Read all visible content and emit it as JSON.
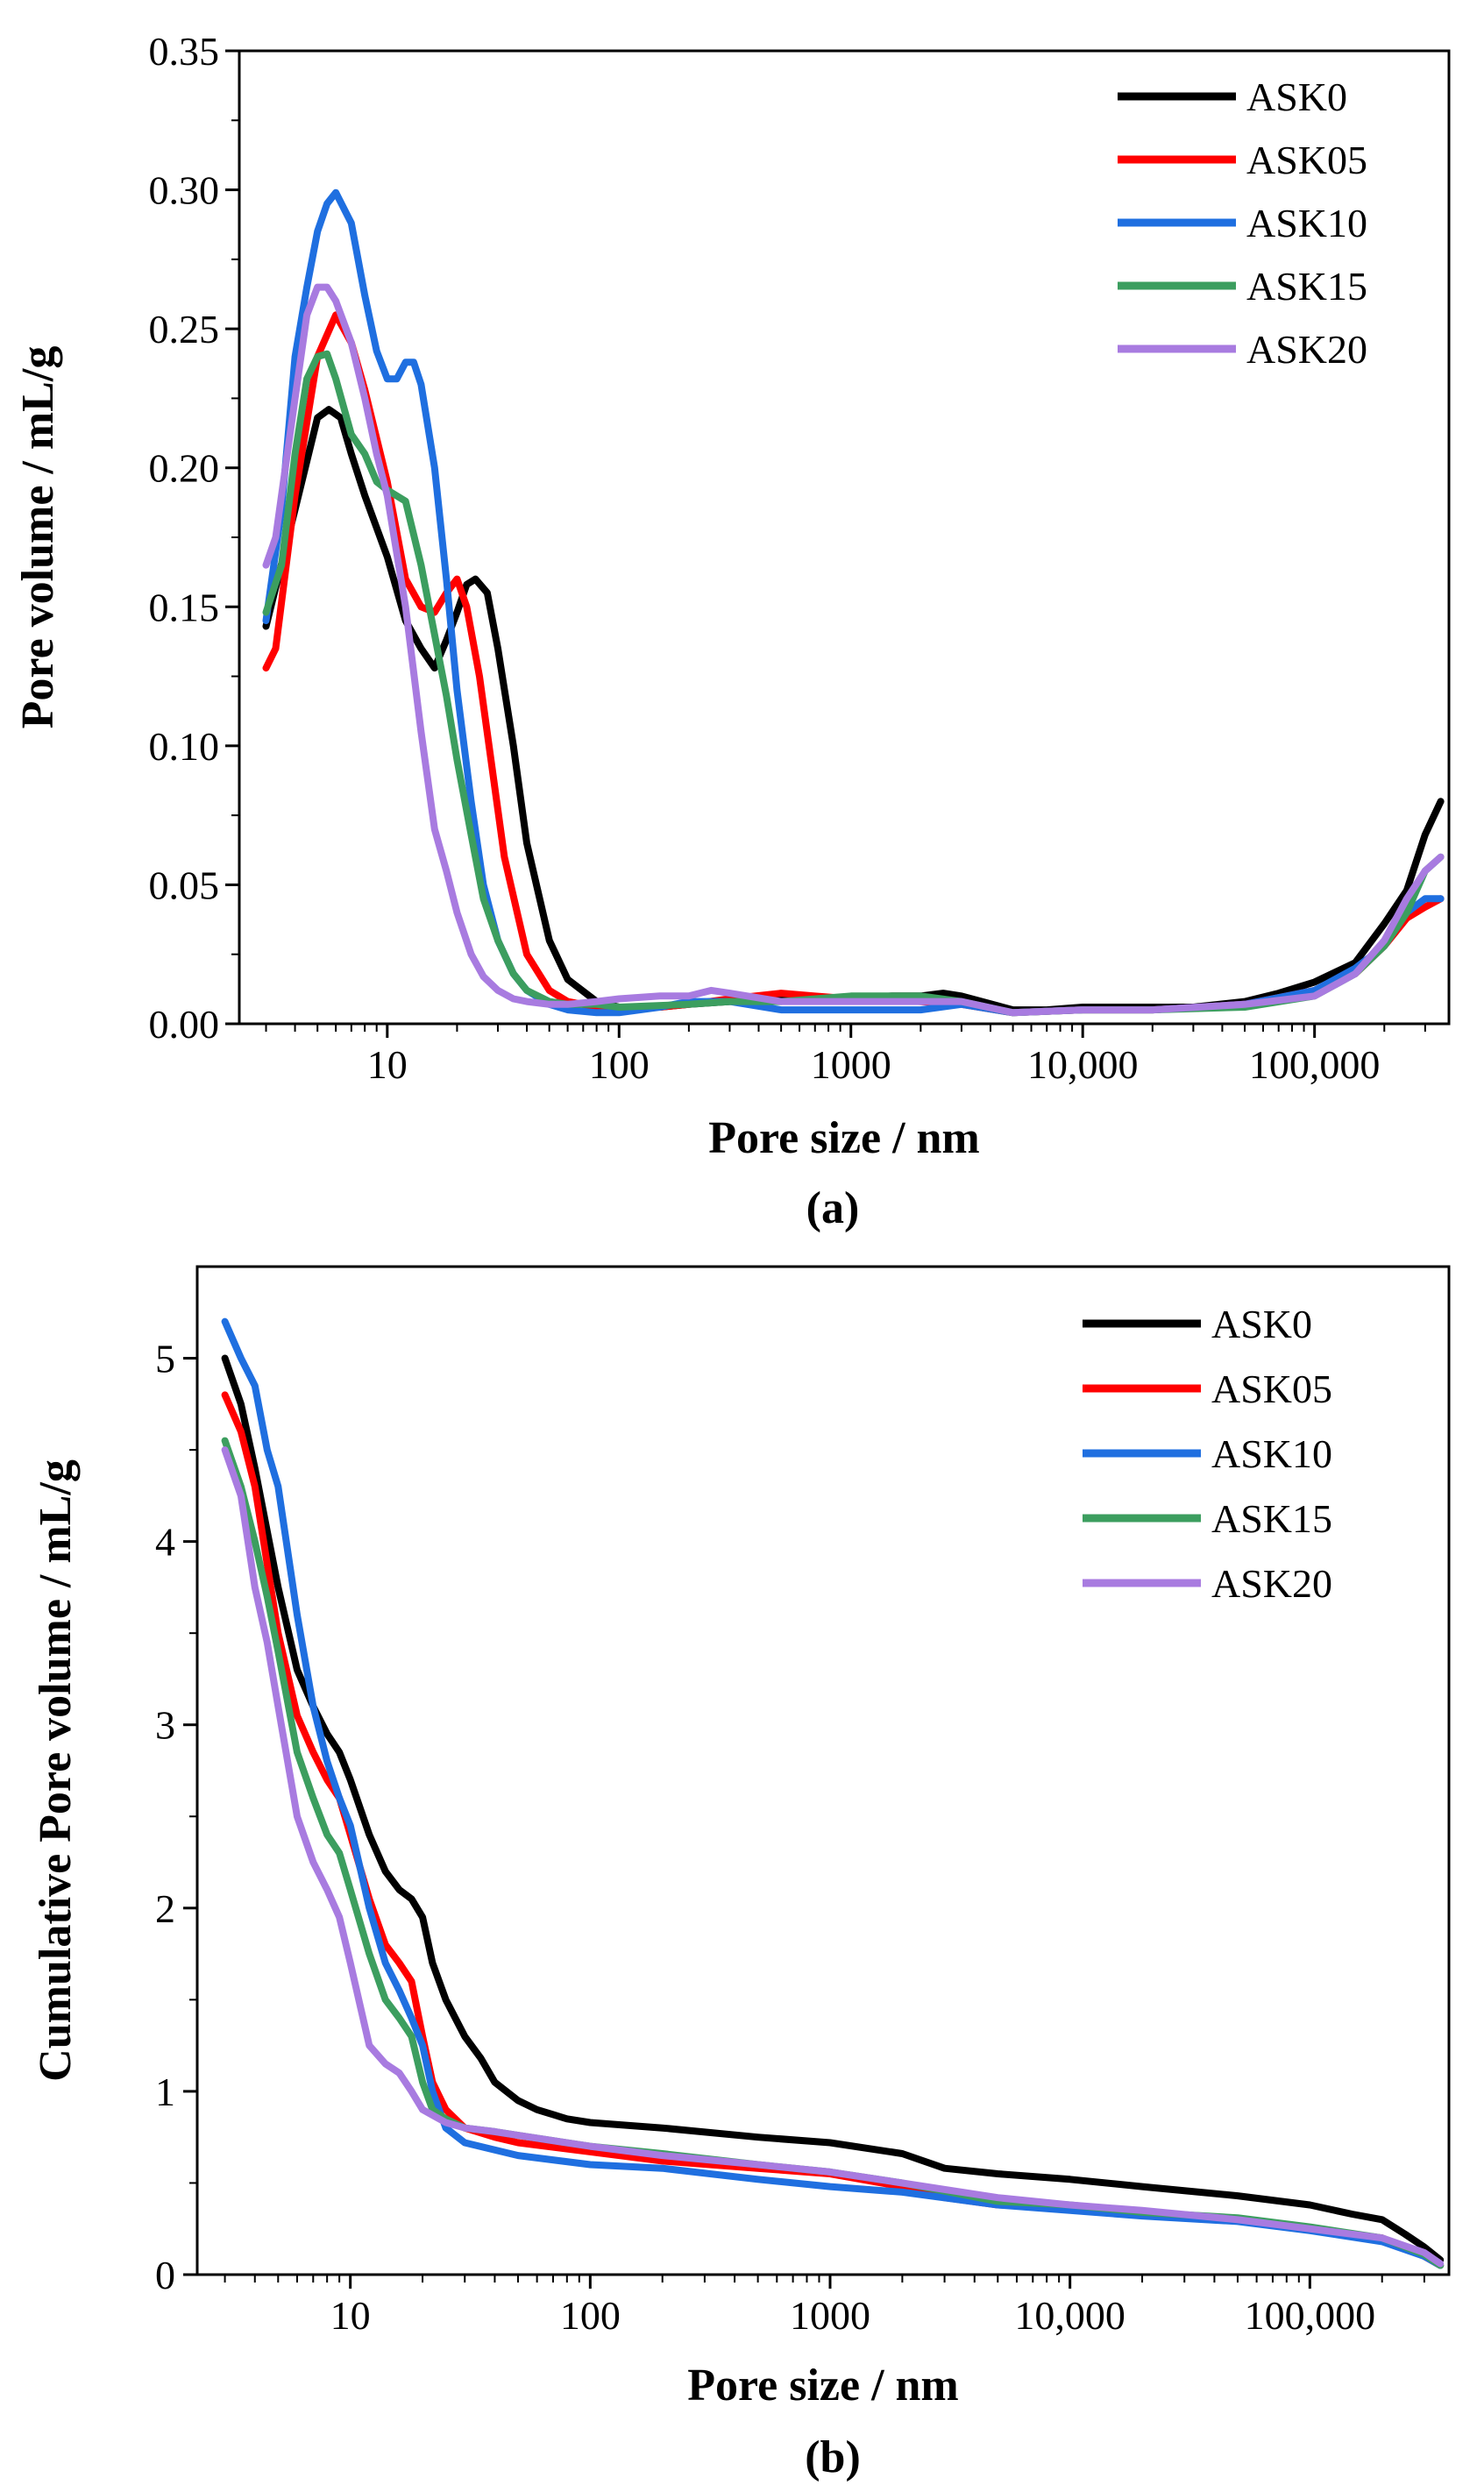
{
  "chart_data": [
    {
      "type": "line",
      "panel_label": "(a)",
      "xlabel": "Pore size / nm",
      "ylabel": "Pore volume / mL/g",
      "x_scale": "log",
      "xlim": [
        2.3,
        380000
      ],
      "ylim": [
        0,
        0.35
      ],
      "x_ticks": [
        {
          "value": 10,
          "label": "10"
        },
        {
          "value": 100,
          "label": "100"
        },
        {
          "value": 1000,
          "label": "1000"
        },
        {
          "value": 10000,
          "label": "10,000"
        },
        {
          "value": 100000,
          "label": "100,000"
        }
      ],
      "y_ticks": [
        {
          "value": 0,
          "label": "0.00"
        },
        {
          "value": 0.05,
          "label": "0.05"
        },
        {
          "value": 0.1,
          "label": "0.10"
        },
        {
          "value": 0.15,
          "label": "0.15"
        },
        {
          "value": 0.2,
          "label": "0.20"
        },
        {
          "value": 0.25,
          "label": "0.25"
        },
        {
          "value": 0.3,
          "label": "0.30"
        },
        {
          "value": 0.35,
          "label": "0.35"
        }
      ],
      "legend_position": "top-right",
      "grid": false,
      "series": [
        {
          "name": "ASK0",
          "color": "#000000",
          "x": [
            3.0,
            4.0,
            5.0,
            5.6,
            6.3,
            7.0,
            8.0,
            10,
            12,
            14,
            16,
            18,
            20,
            22,
            24,
            27,
            30,
            35,
            40,
            50,
            60,
            80,
            100,
            150,
            200,
            300,
            500,
            700,
            1000,
            1500,
            2000,
            2500,
            3000,
            5000,
            7000,
            10000,
            15000,
            20000,
            30000,
            50000,
            70000,
            100000,
            150000,
            200000,
            250000,
            300000,
            350000
          ],
          "y": [
            0.143,
            0.185,
            0.218,
            0.221,
            0.218,
            0.205,
            0.19,
            0.168,
            0.145,
            0.135,
            0.128,
            0.138,
            0.148,
            0.158,
            0.16,
            0.155,
            0.135,
            0.1,
            0.065,
            0.03,
            0.016,
            0.008,
            0.006,
            0.006,
            0.007,
            0.008,
            0.009,
            0.009,
            0.009,
            0.01,
            0.01,
            0.011,
            0.01,
            0.005,
            0.005,
            0.006,
            0.006,
            0.006,
            0.006,
            0.008,
            0.011,
            0.015,
            0.022,
            0.036,
            0.048,
            0.068,
            0.08
          ]
        },
        {
          "name": "ASK05",
          "color": "#ff0000",
          "x": [
            3.0,
            3.3,
            4.0,
            5.0,
            6.0,
            7.0,
            8.0,
            10,
            12,
            14,
            16,
            18,
            20,
            22,
            25,
            28,
            32,
            40,
            50,
            60,
            80,
            100,
            150,
            200,
            300,
            500,
            700,
            1000,
            2000,
            3000,
            5000,
            10000,
            20000,
            50000,
            100000,
            150000,
            200000,
            250000,
            300000,
            350000
          ],
          "y": [
            0.128,
            0.135,
            0.19,
            0.24,
            0.255,
            0.245,
            0.228,
            0.195,
            0.16,
            0.15,
            0.148,
            0.155,
            0.16,
            0.15,
            0.125,
            0.095,
            0.06,
            0.025,
            0.012,
            0.008,
            0.006,
            0.006,
            0.006,
            0.007,
            0.009,
            0.011,
            0.01,
            0.009,
            0.008,
            0.007,
            0.004,
            0.005,
            0.005,
            0.007,
            0.012,
            0.018,
            0.028,
            0.038,
            0.042,
            0.045
          ]
        },
        {
          "name": "ASK10",
          "color": "#1f6fe0",
          "x": [
            3.0,
            3.5,
            4.0,
            4.5,
            5.0,
            5.5,
            6.0,
            7.0,
            8.0,
            9.0,
            10,
            11,
            12,
            13,
            14,
            16,
            18,
            20,
            23,
            26,
            30,
            35,
            40,
            50,
            60,
            80,
            100,
            150,
            200,
            300,
            500,
            1000,
            2000,
            3000,
            5000,
            10000,
            20000,
            50000,
            100000,
            150000,
            200000,
            250000,
            300000,
            350000
          ],
          "y": [
            0.145,
            0.185,
            0.24,
            0.265,
            0.285,
            0.295,
            0.299,
            0.288,
            0.262,
            0.242,
            0.232,
            0.232,
            0.238,
            0.238,
            0.23,
            0.2,
            0.16,
            0.12,
            0.08,
            0.05,
            0.03,
            0.018,
            0.012,
            0.007,
            0.005,
            0.004,
            0.004,
            0.006,
            0.008,
            0.008,
            0.005,
            0.005,
            0.005,
            0.007,
            0.004,
            0.005,
            0.005,
            0.007,
            0.012,
            0.02,
            0.028,
            0.04,
            0.045,
            0.045
          ]
        },
        {
          "name": "ASK15",
          "color": "#3c9e5f",
          "x": [
            3.0,
            3.5,
            4.0,
            4.5,
            5.0,
            5.5,
            6.0,
            7.0,
            8.0,
            9.0,
            10,
            12,
            14,
            16,
            18,
            20,
            23,
            26,
            30,
            35,
            40,
            50,
            60,
            80,
            100,
            200,
            300,
            500,
            1000,
            2000,
            3000,
            5000,
            10000,
            20000,
            50000,
            100000,
            150000,
            200000,
            250000,
            300000,
            350000
          ],
          "y": [
            0.148,
            0.165,
            0.205,
            0.232,
            0.24,
            0.241,
            0.232,
            0.212,
            0.205,
            0.195,
            0.192,
            0.188,
            0.165,
            0.14,
            0.118,
            0.095,
            0.068,
            0.045,
            0.03,
            0.018,
            0.012,
            0.008,
            0.007,
            0.007,
            0.006,
            0.007,
            0.008,
            0.008,
            0.01,
            0.01,
            0.008,
            0.004,
            0.005,
            0.005,
            0.006,
            0.01,
            0.018,
            0.028,
            0.04,
            0.055,
            0.06
          ]
        },
        {
          "name": "ASK20",
          "color": "#a87be0",
          "x": [
            3.0,
            3.3,
            4.0,
            4.5,
            5.0,
            5.5,
            6.0,
            7.0,
            8.0,
            9.0,
            10,
            12,
            14,
            16,
            18,
            20,
            23,
            26,
            30,
            35,
            40,
            50,
            60,
            80,
            100,
            150,
            200,
            250,
            300,
            500,
            1000,
            2000,
            3000,
            5000,
            10000,
            20000,
            50000,
            100000,
            150000,
            200000,
            250000,
            300000,
            350000
          ],
          "y": [
            0.165,
            0.175,
            0.225,
            0.255,
            0.265,
            0.265,
            0.26,
            0.245,
            0.225,
            0.205,
            0.19,
            0.15,
            0.105,
            0.07,
            0.055,
            0.04,
            0.025,
            0.017,
            0.012,
            0.009,
            0.008,
            0.007,
            0.007,
            0.008,
            0.009,
            0.01,
            0.01,
            0.012,
            0.011,
            0.008,
            0.008,
            0.008,
            0.008,
            0.004,
            0.005,
            0.005,
            0.007,
            0.01,
            0.018,
            0.03,
            0.045,
            0.055,
            0.06
          ]
        }
      ]
    },
    {
      "type": "line",
      "panel_label": "(b)",
      "xlabel": "Pore size / nm",
      "ylabel": "Cumulative Pore volume / mL/g",
      "x_scale": "log",
      "xlim": [
        2.3,
        380000
      ],
      "ylim": [
        0,
        5.5
      ],
      "x_ticks": [
        {
          "value": 10,
          "label": "10"
        },
        {
          "value": 100,
          "label": "100"
        },
        {
          "value": 1000,
          "label": "1000"
        },
        {
          "value": 10000,
          "label": "10,000"
        },
        {
          "value": 100000,
          "label": "100,000"
        }
      ],
      "y_ticks": [
        {
          "value": 0,
          "label": "0"
        },
        {
          "value": 1,
          "label": "1"
        },
        {
          "value": 2,
          "label": "2"
        },
        {
          "value": 3,
          "label": "3"
        },
        {
          "value": 4,
          "label": "4"
        },
        {
          "value": 5,
          "label": "5"
        }
      ],
      "legend_position": "top-right",
      "grid": false,
      "series": [
        {
          "name": "ASK0",
          "color": "#000000",
          "x": [
            3.0,
            3.5,
            4.0,
            5.0,
            6.0,
            7.0,
            8.0,
            9.0,
            10,
            12,
            14,
            16,
            18,
            20,
            22,
            25,
            30,
            35,
            40,
            50,
            60,
            80,
            100,
            200,
            500,
            1000,
            2000,
            3000,
            5000,
            10000,
            20000,
            50000,
            100000,
            150000,
            200000,
            250000,
            300000,
            350000
          ],
          "y": [
            5.0,
            4.75,
            4.4,
            3.75,
            3.3,
            3.1,
            2.95,
            2.85,
            2.7,
            2.4,
            2.2,
            2.1,
            2.05,
            1.95,
            1.7,
            1.5,
            1.3,
            1.18,
            1.05,
            0.95,
            0.9,
            0.85,
            0.83,
            0.8,
            0.75,
            0.72,
            0.66,
            0.58,
            0.55,
            0.52,
            0.48,
            0.43,
            0.38,
            0.33,
            0.3,
            0.22,
            0.15,
            0.08
          ]
        },
        {
          "name": "ASK05",
          "color": "#ff0000",
          "x": [
            3.0,
            3.5,
            4.0,
            5.0,
            6.0,
            7.0,
            8.0,
            9.0,
            10,
            12,
            14,
            16,
            18,
            20,
            22,
            25,
            30,
            40,
            50,
            100,
            200,
            500,
            1000,
            2000,
            3000,
            5000,
            10000,
            20000,
            50000,
            100000,
            200000,
            300000,
            350000
          ],
          "y": [
            4.8,
            4.6,
            4.3,
            3.5,
            3.05,
            2.85,
            2.7,
            2.6,
            2.4,
            2.05,
            1.8,
            1.7,
            1.6,
            1.3,
            1.05,
            0.9,
            0.8,
            0.75,
            0.72,
            0.67,
            0.62,
            0.58,
            0.55,
            0.48,
            0.42,
            0.38,
            0.37,
            0.33,
            0.3,
            0.25,
            0.2,
            0.1,
            0.05
          ]
        },
        {
          "name": "ASK10",
          "color": "#1f6fe0",
          "x": [
            3.0,
            3.5,
            4.0,
            4.5,
            5.0,
            6.0,
            7.0,
            8.0,
            9.0,
            10,
            12,
            14,
            16,
            18,
            20,
            22,
            25,
            30,
            40,
            50,
            100,
            200,
            500,
            1000,
            2000,
            5000,
            10000,
            20000,
            50000,
            100000,
            200000,
            300000,
            350000
          ],
          "y": [
            5.2,
            5.0,
            4.85,
            4.5,
            4.3,
            3.6,
            3.1,
            2.8,
            2.6,
            2.45,
            2.0,
            1.7,
            1.55,
            1.4,
            1.25,
            1.0,
            0.8,
            0.72,
            0.68,
            0.65,
            0.6,
            0.58,
            0.52,
            0.48,
            0.45,
            0.38,
            0.35,
            0.32,
            0.29,
            0.24,
            0.18,
            0.1,
            0.05
          ]
        },
        {
          "name": "ASK15",
          "color": "#3c9e5f",
          "x": [
            3.0,
            3.5,
            4.0,
            4.5,
            5.0,
            6.0,
            7.0,
            8.0,
            9.0,
            10,
            12,
            14,
            16,
            18,
            20,
            22,
            25,
            30,
            40,
            50,
            100,
            200,
            500,
            1000,
            2000,
            5000,
            10000,
            20000,
            50000,
            100000,
            200000,
            300000,
            350000
          ],
          "y": [
            4.55,
            4.3,
            4.0,
            3.7,
            3.4,
            2.85,
            2.6,
            2.4,
            2.3,
            2.1,
            1.75,
            1.5,
            1.4,
            1.3,
            1.05,
            0.9,
            0.85,
            0.8,
            0.78,
            0.76,
            0.7,
            0.66,
            0.6,
            0.56,
            0.5,
            0.4,
            0.38,
            0.34,
            0.31,
            0.26,
            0.2,
            0.11,
            0.05
          ]
        },
        {
          "name": "ASK20",
          "color": "#a87be0",
          "x": [
            3.0,
            3.5,
            4.0,
            4.5,
            5.0,
            6.0,
            7.0,
            8.0,
            9.0,
            10,
            12,
            14,
            16,
            18,
            20,
            25,
            30,
            40,
            50,
            100,
            200,
            500,
            1000,
            2000,
            5000,
            10000,
            20000,
            50000,
            100000,
            200000,
            300000,
            350000
          ],
          "y": [
            4.5,
            4.25,
            3.75,
            3.45,
            3.1,
            2.5,
            2.25,
            2.1,
            1.95,
            1.7,
            1.25,
            1.15,
            1.1,
            1.0,
            0.9,
            0.83,
            0.8,
            0.78,
            0.76,
            0.7,
            0.65,
            0.6,
            0.56,
            0.5,
            0.42,
            0.38,
            0.35,
            0.3,
            0.25,
            0.2,
            0.12,
            0.06
          ]
        }
      ]
    }
  ]
}
